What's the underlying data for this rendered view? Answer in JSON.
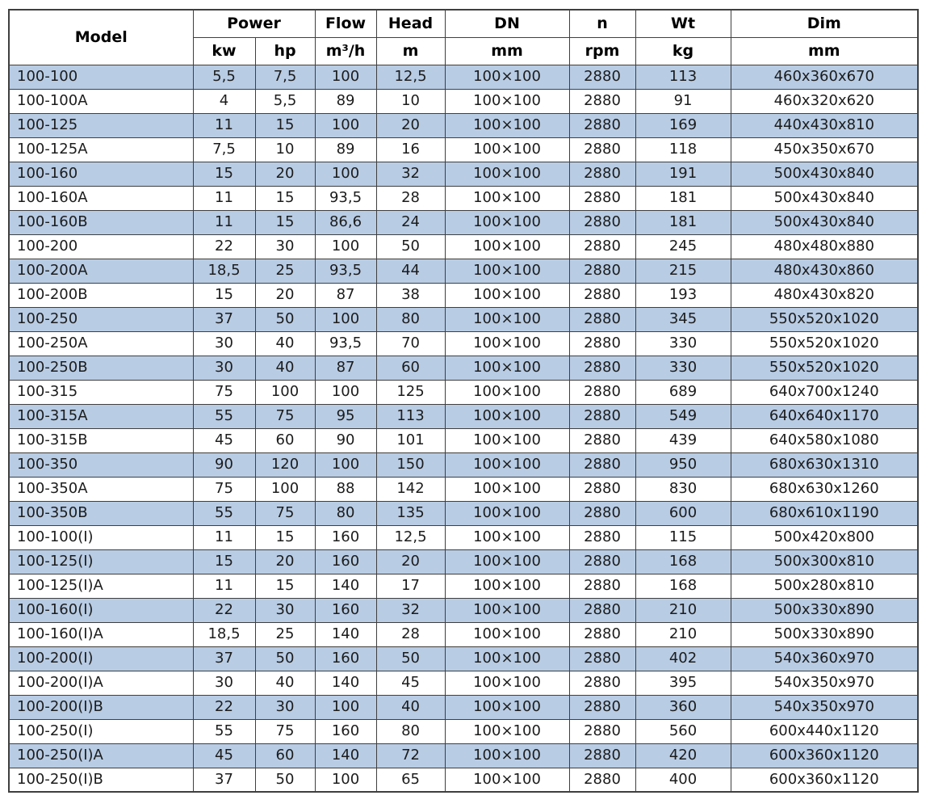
{
  "colors": {
    "row_alt": "#b8cce4",
    "border": "#3f3f3f",
    "text": "#1c1c1c"
  },
  "table": {
    "header": {
      "model": "Model",
      "power": "Power",
      "kw": "kw",
      "hp": "hp",
      "flow": "Flow",
      "flow_unit": "m³/h",
      "head": "Head",
      "head_unit": "m",
      "dn": "DN",
      "dn_unit": "mm",
      "n": "n",
      "n_unit": "rpm",
      "wt": "Wt",
      "wt_unit": "kg",
      "dim": "Dim",
      "dim_unit": "mm"
    },
    "rows": [
      [
        "100-100",
        "5,5",
        "7,5",
        "100",
        "12,5",
        "100×100",
        "2880",
        "113",
        "460x360x670"
      ],
      [
        "100-100A",
        "4",
        "5,5",
        "89",
        "10",
        "100×100",
        "2880",
        "91",
        "460x320x620"
      ],
      [
        "100-125",
        "11",
        "15",
        "100",
        "20",
        "100×100",
        "2880",
        "169",
        "440x430x810"
      ],
      [
        "100-125A",
        "7,5",
        "10",
        "89",
        "16",
        "100×100",
        "2880",
        "118",
        "450x350x670"
      ],
      [
        "100-160",
        "15",
        "20",
        "100",
        "32",
        "100×100",
        "2880",
        "191",
        "500x430x840"
      ],
      [
        "100-160A",
        "11",
        "15",
        "93,5",
        "28",
        "100×100",
        "2880",
        "181",
        "500x430x840"
      ],
      [
        "100-160B",
        "11",
        "15",
        "86,6",
        "24",
        "100×100",
        "2880",
        "181",
        "500x430x840"
      ],
      [
        "100-200",
        "22",
        "30",
        "100",
        "50",
        "100×100",
        "2880",
        "245",
        "480x480x880"
      ],
      [
        "100-200A",
        "18,5",
        "25",
        "93,5",
        "44",
        "100×100",
        "2880",
        "215",
        "480x430x860"
      ],
      [
        "100-200B",
        "15",
        "20",
        "87",
        "38",
        "100×100",
        "2880",
        "193",
        "480x430x820"
      ],
      [
        "100-250",
        "37",
        "50",
        "100",
        "80",
        "100×100",
        "2880",
        "345",
        "550x520x1020"
      ],
      [
        "100-250A",
        "30",
        "40",
        "93,5",
        "70",
        "100×100",
        "2880",
        "330",
        "550x520x1020"
      ],
      [
        "100-250B",
        "30",
        "40",
        "87",
        "60",
        "100×100",
        "2880",
        "330",
        "550x520x1020"
      ],
      [
        "100-315",
        "75",
        "100",
        "100",
        "125",
        "100×100",
        "2880",
        "689",
        "640x700x1240"
      ],
      [
        "100-315A",
        "55",
        "75",
        "95",
        "113",
        "100×100",
        "2880",
        "549",
        "640x640x1170"
      ],
      [
        "100-315B",
        "45",
        "60",
        "90",
        "101",
        "100×100",
        "2880",
        "439",
        "640x580x1080"
      ],
      [
        "100-350",
        "90",
        "120",
        "100",
        "150",
        "100×100",
        "2880",
        "950",
        "680x630x1310"
      ],
      [
        "100-350A",
        "75",
        "100",
        "88",
        "142",
        "100×100",
        "2880",
        "830",
        "680x630x1260"
      ],
      [
        "100-350B",
        "55",
        "75",
        "80",
        "135",
        "100×100",
        "2880",
        "600",
        "680x610x1190"
      ],
      [
        "100-100(I)",
        "11",
        "15",
        "160",
        "12,5",
        "100×100",
        "2880",
        "115",
        "500x420x800"
      ],
      [
        "100-125(I)",
        "15",
        "20",
        "160",
        "20",
        "100×100",
        "2880",
        "168",
        "500x300x810"
      ],
      [
        "100-125(I)A",
        "11",
        "15",
        "140",
        "17",
        "100×100",
        "2880",
        "168",
        "500x280x810"
      ],
      [
        "100-160(I)",
        "22",
        "30",
        "160",
        "32",
        "100×100",
        "2880",
        "210",
        "500x330x890"
      ],
      [
        "100-160(I)A",
        "18,5",
        "25",
        "140",
        "28",
        "100×100",
        "2880",
        "210",
        "500x330x890"
      ],
      [
        "100-200(I)",
        "37",
        "50",
        "160",
        "50",
        "100×100",
        "2880",
        "402",
        "540x360x970"
      ],
      [
        "100-200(I)A",
        "30",
        "40",
        "140",
        "45",
        "100×100",
        "2880",
        "395",
        "540x350x970"
      ],
      [
        "100-200(I)B",
        "22",
        "30",
        "100",
        "40",
        "100×100",
        "2880",
        "360",
        "540x350x970"
      ],
      [
        "100-250(I)",
        "55",
        "75",
        "160",
        "80",
        "100×100",
        "2880",
        "560",
        "600x440x1120"
      ],
      [
        "100-250(I)A",
        "45",
        "60",
        "140",
        "72",
        "100×100",
        "2880",
        "420",
        "600x360x1120"
      ],
      [
        "100-250(I)B",
        "37",
        "50",
        "100",
        "65",
        "100×100",
        "2880",
        "400",
        "600x360x1120"
      ]
    ]
  }
}
